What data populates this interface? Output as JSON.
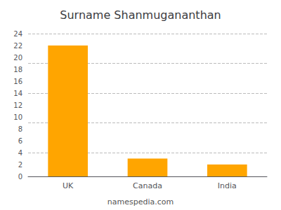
{
  "chart_data": {
    "type": "bar",
    "title": "Surname Shanmugananthan",
    "categories": [
      "UK",
      "Canada",
      "India"
    ],
    "values": [
      22,
      3,
      2
    ],
    "color": "#FFA500",
    "ylim": [
      0,
      24
    ],
    "yticks": [
      0,
      2,
      4,
      6,
      8,
      10,
      12,
      14,
      16,
      18,
      20,
      22,
      24
    ],
    "grid": [
      4,
      9,
      14,
      19,
      24
    ],
    "annotations": [
      "namespedia.com"
    ]
  }
}
